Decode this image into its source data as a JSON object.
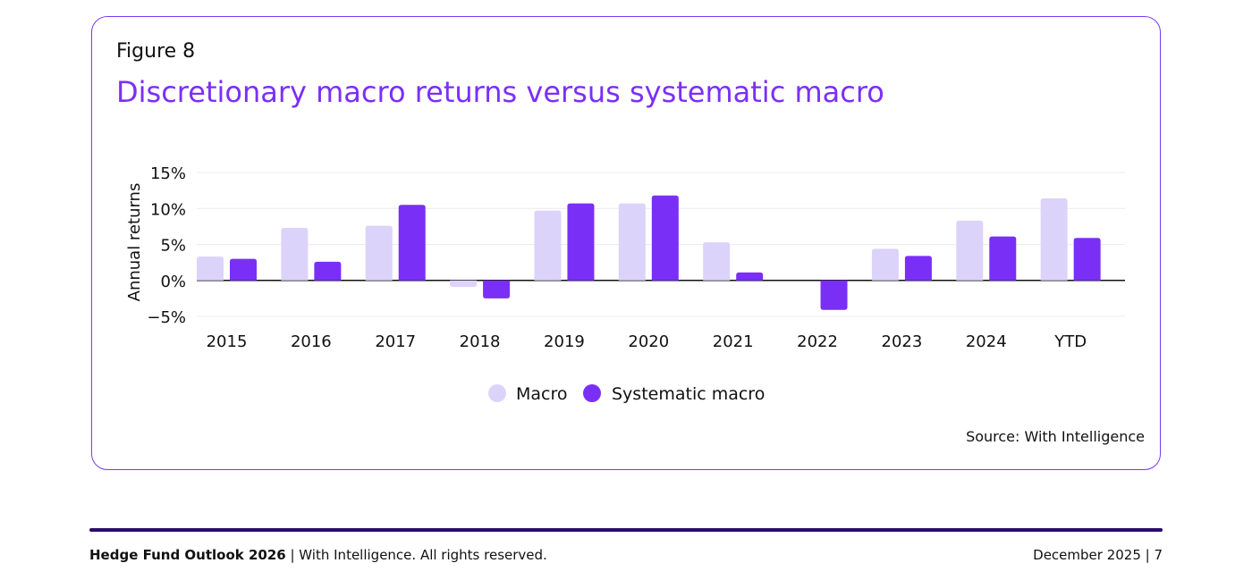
{
  "figure": {
    "label": "Figure 8",
    "title": "Discretionary macro returns versus systematic macro",
    "source": "Source: With Intelligence"
  },
  "colors": {
    "macro": "#dcd3fb",
    "systematic": "#7a2ff7",
    "title": "#7b2ff7",
    "border": "#7b3bf0",
    "footer_rule": "#2a0c6b"
  },
  "chart_data": {
    "type": "bar",
    "categories": [
      "2015",
      "2016",
      "2017",
      "2018",
      "2019",
      "2020",
      "2021",
      "2022",
      "2023",
      "2024",
      "YTD"
    ],
    "series": [
      {
        "name": "Macro",
        "values": [
          3.3,
          7.3,
          7.6,
          -0.9,
          9.7,
          10.7,
          5.3,
          0.0,
          4.4,
          8.3,
          11.4
        ]
      },
      {
        "name": "Systematic macro",
        "values": [
          3.0,
          2.6,
          10.5,
          -2.5,
          10.7,
          11.8,
          1.1,
          -4.1,
          3.4,
          6.1,
          5.9
        ]
      }
    ],
    "ylabel": "Annual returns",
    "xlabel": "",
    "ylim": [
      -5,
      15
    ],
    "yticks": [
      -5,
      0,
      5,
      10,
      15
    ],
    "ytick_labels": [
      "−5%",
      "0%",
      "5%",
      "10%",
      "15%"
    ],
    "grid": true,
    "legend": "bottom-center"
  },
  "footer": {
    "publication": "Hedge Fund Outlook 2026",
    "rights": " | With Intelligence. All rights reserved.",
    "date_page": "December 2025 | 7"
  }
}
